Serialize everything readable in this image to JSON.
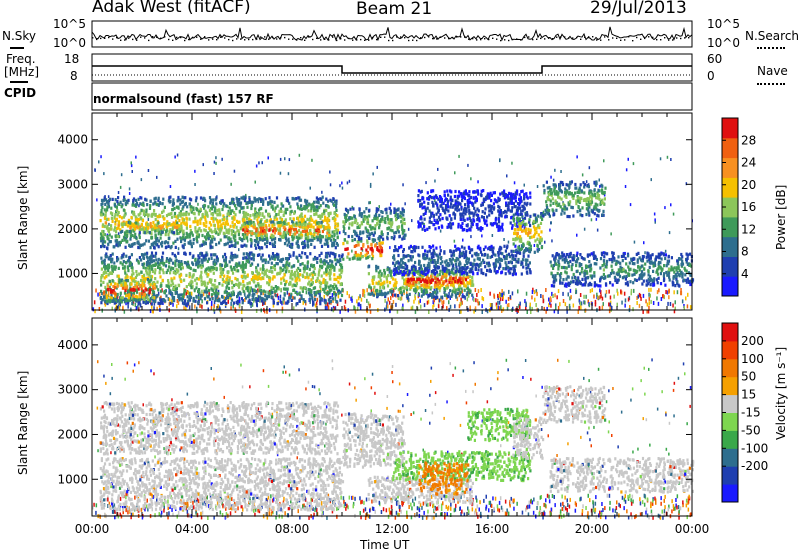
{
  "header": {
    "radar": "Adak West (fitACF)",
    "beam": "Beam 21",
    "date": "29/Jul/2013"
  },
  "noise_panel": {
    "left_label": "N.Sky",
    "right_label": "N.Search",
    "left_ticks": [
      "10^5",
      "10^0"
    ],
    "right_ticks": [
      "10^5",
      "10^0"
    ]
  },
  "freq_panel": {
    "left_label_1": "Freq.",
    "left_label_2": "[MHz]",
    "right_label": "Nave",
    "left_ticks": [
      "18",
      "8"
    ],
    "right_ticks": [
      "60",
      "0"
    ]
  },
  "cpid_panel": {
    "label": "CPID",
    "text": "normalsound (fast) 157 RF"
  },
  "colors": {
    "power_scale": [
      "#1a1aff",
      "#1f3fb0",
      "#2e6e8e",
      "#3f9a5a",
      "#8cc65a",
      "#f5c000",
      "#f89020",
      "#f06010",
      "#e01010"
    ],
    "velocity_scale": [
      "#1a1aff",
      "#1f3fb0",
      "#2e6e8e",
      "#3aa84a",
      "#7ed650",
      "#c8c8c8",
      "#f5a000",
      "#f07800",
      "#f04000",
      "#e01010"
    ],
    "ground_scatter": "#c8c8c8"
  },
  "chart_data": [
    {
      "type": "heatmap",
      "name": "power",
      "ylabel": "Slant Range [km]",
      "yticks": [
        1000,
        2000,
        3000,
        4000
      ],
      "ylim": [
        180,
        4600
      ],
      "xlim_hours": [
        0,
        24
      ],
      "colorbar_label": "Power [dB]",
      "colorbar_ticks": [
        4,
        8,
        12,
        16,
        20,
        24,
        28
      ],
      "colorbar_range": [
        0,
        32
      ],
      "regions": [
        {
          "t0": 0.3,
          "t1": 9.8,
          "r0": 1600,
          "r1": 2750,
          "level": 0.55
        },
        {
          "t0": 0.3,
          "t1": 10.0,
          "r0": 350,
          "r1": 1500,
          "level": 0.5
        },
        {
          "t0": 0.4,
          "t1": 2.5,
          "r0": 400,
          "r1": 900,
          "level": 0.85
        },
        {
          "t0": 1.0,
          "t1": 3.5,
          "r0": 1950,
          "r1": 2200,
          "level": 0.65
        },
        {
          "t0": 6.0,
          "t1": 9.5,
          "r0": 1800,
          "r1": 2200,
          "level": 0.8
        },
        {
          "t0": 10.0,
          "t1": 11.6,
          "r0": 1350,
          "r1": 1800,
          "level": 0.9
        },
        {
          "t0": 10.0,
          "t1": 12.5,
          "r0": 1800,
          "r1": 2500,
          "level": 0.45
        },
        {
          "t0": 11.0,
          "t1": 15.2,
          "r0": 500,
          "r1": 1200,
          "level": 0.55
        },
        {
          "t0": 12.5,
          "t1": 15.0,
          "r0": 650,
          "r1": 1100,
          "level": 0.88
        },
        {
          "t0": 12.0,
          "t1": 17.5,
          "r0": 1000,
          "r1": 1650,
          "level": 0.25
        },
        {
          "t0": 13.0,
          "t1": 17.5,
          "r0": 2000,
          "r1": 2900,
          "level": 0.15
        },
        {
          "t0": 16.8,
          "t1": 18.0,
          "r0": 1500,
          "r1": 2400,
          "level": 0.6
        },
        {
          "t0": 18.0,
          "t1": 20.5,
          "r0": 2300,
          "r1": 3100,
          "level": 0.45
        },
        {
          "t0": 18.3,
          "t1": 24.0,
          "r0": 750,
          "r1": 1500,
          "level": 0.35
        }
      ]
    },
    {
      "type": "heatmap",
      "name": "velocity",
      "ylabel": "Slant Range [km]",
      "yticks": [
        1000,
        2000,
        3000,
        4000
      ],
      "ylim": [
        180,
        4600
      ],
      "xlim_hours": [
        0,
        24
      ],
      "xticks": [
        "00:00",
        "04:00",
        "08:00",
        "12:00",
        "16:00",
        "20:00",
        "00:00"
      ],
      "xlabel": "Time UT",
      "colorbar_label": "Velocity [m s⁻¹]",
      "colorbar_ticks": [
        "200",
        "100",
        "50",
        "15",
        "-15",
        "-50",
        "-100",
        "-200"
      ],
      "regions": [
        {
          "t0": 0.3,
          "t1": 9.8,
          "r0": 1600,
          "r1": 2750,
          "cat": "ground"
        },
        {
          "t0": 0.3,
          "t1": 10.0,
          "r0": 350,
          "r1": 1500,
          "cat": "ground"
        },
        {
          "t0": 10.0,
          "t1": 12.5,
          "r0": 1300,
          "r1": 2500,
          "cat": "ground"
        },
        {
          "t0": 11.0,
          "t1": 15.2,
          "r0": 500,
          "r1": 1100,
          "cat": "ground"
        },
        {
          "t0": 12.0,
          "t1": 17.5,
          "r0": 1000,
          "r1": 1650,
          "cat": "green"
        },
        {
          "t0": 13.0,
          "t1": 15.0,
          "r0": 700,
          "r1": 1400,
          "cat": "orange"
        },
        {
          "t0": 15.0,
          "t1": 17.5,
          "r0": 1900,
          "r1": 2600,
          "cat": "green"
        },
        {
          "t0": 16.8,
          "t1": 18.0,
          "r0": 1500,
          "r1": 2400,
          "cat": "ground"
        },
        {
          "t0": 18.0,
          "t1": 20.5,
          "r0": 2300,
          "r1": 3100,
          "cat": "ground"
        },
        {
          "t0": 18.3,
          "t1": 24.0,
          "r0": 750,
          "r1": 1500,
          "cat": "ground"
        }
      ]
    }
  ]
}
